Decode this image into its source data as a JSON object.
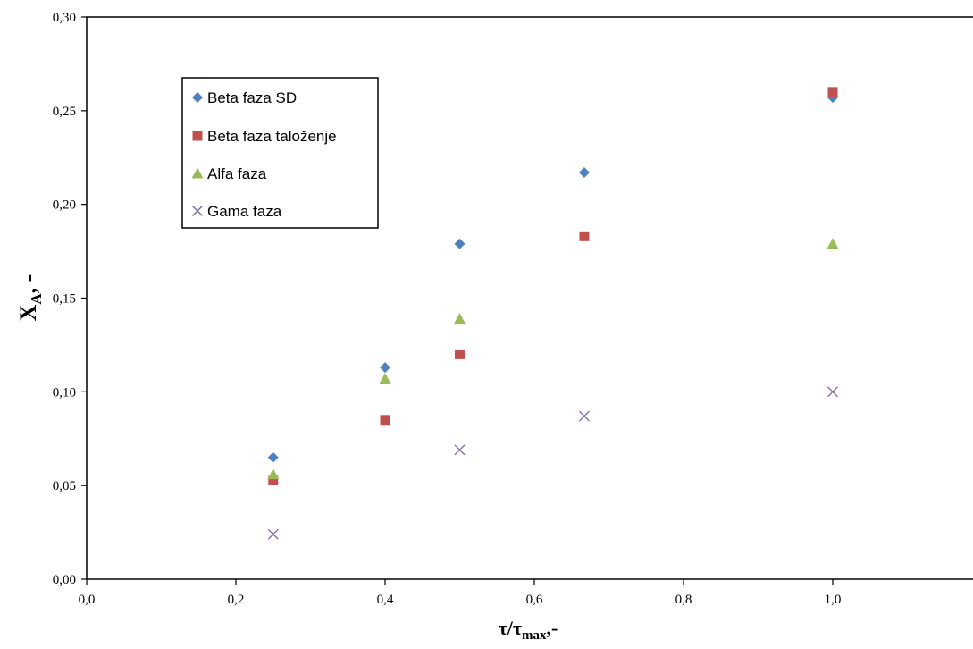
{
  "chart_data": {
    "type": "scatter",
    "xlabel": {
      "main": "τ/τ",
      "sub": "max",
      "suffix": ",-"
    },
    "ylabel": {
      "main": "X",
      "sub": "A",
      "suffix": ", -"
    },
    "xlim": [
      0.0,
      1.2
    ],
    "ylim": [
      0.0,
      0.3
    ],
    "x_ticks": [
      0.0,
      0.2,
      0.4,
      0.6,
      0.8,
      1.0
    ],
    "x_tick_labels": [
      "0,0",
      "0,2",
      "0,4",
      "0,6",
      "0,8",
      "1,0"
    ],
    "y_ticks": [
      0.0,
      0.05,
      0.1,
      0.15,
      0.2,
      0.25,
      0.3
    ],
    "y_tick_labels": [
      "0,00",
      "0,05",
      "0,10",
      "0,15",
      "0,20",
      "0,25",
      "0,30"
    ],
    "grid": false,
    "legend_position": "top-left",
    "series": [
      {
        "name": "Beta faza SD",
        "marker": "diamond",
        "color": "#4f81bd",
        "points": [
          [
            0.25,
            0.065
          ],
          [
            0.4,
            0.113
          ],
          [
            0.5,
            0.179
          ],
          [
            0.667,
            0.217
          ],
          [
            1.0,
            0.257
          ]
        ]
      },
      {
        "name": "Beta faza taloženje",
        "marker": "square",
        "color": "#c0504d",
        "points": [
          [
            0.25,
            0.053
          ],
          [
            0.4,
            0.085
          ],
          [
            0.5,
            0.12
          ],
          [
            0.667,
            0.183
          ],
          [
            1.0,
            0.26
          ]
        ]
      },
      {
        "name": "Alfa faza",
        "marker": "triangle",
        "color": "#9bbb59",
        "points": [
          [
            0.25,
            0.056
          ],
          [
            0.4,
            0.107
          ],
          [
            0.5,
            0.139
          ],
          [
            1.0,
            0.179
          ]
        ]
      },
      {
        "name": "Gama faza",
        "marker": "x",
        "color": "#8064a2",
        "points": [
          [
            0.25,
            0.024
          ],
          [
            0.5,
            0.069
          ],
          [
            0.667,
            0.087
          ],
          [
            1.0,
            0.1
          ]
        ]
      }
    ]
  }
}
